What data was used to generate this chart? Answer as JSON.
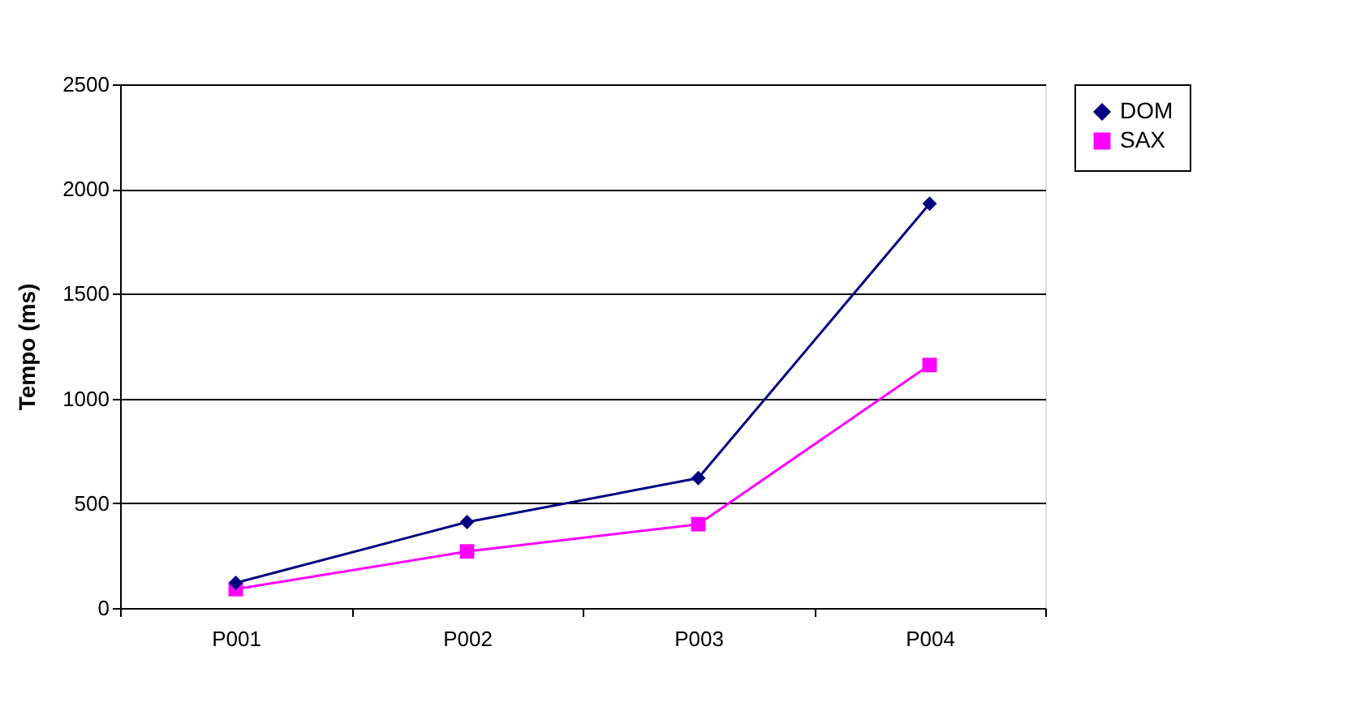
{
  "chart_data": {
    "type": "line",
    "ylabel": "Tempo (ms)",
    "categories": [
      "P001",
      "P002",
      "P003",
      "P004"
    ],
    "series": [
      {
        "name": "DOM",
        "color": "#000080",
        "marker": "diamond",
        "values": [
          120,
          410,
          620,
          1930
        ]
      },
      {
        "name": "SAX",
        "color": "#ff00ff",
        "marker": "square",
        "values": [
          90,
          270,
          400,
          1160
        ]
      }
    ],
    "ylim": [
      0,
      2500
    ],
    "yticks": [
      0,
      500,
      1000,
      1500,
      2000,
      2500
    ],
    "grid": "y",
    "legend": "right"
  }
}
